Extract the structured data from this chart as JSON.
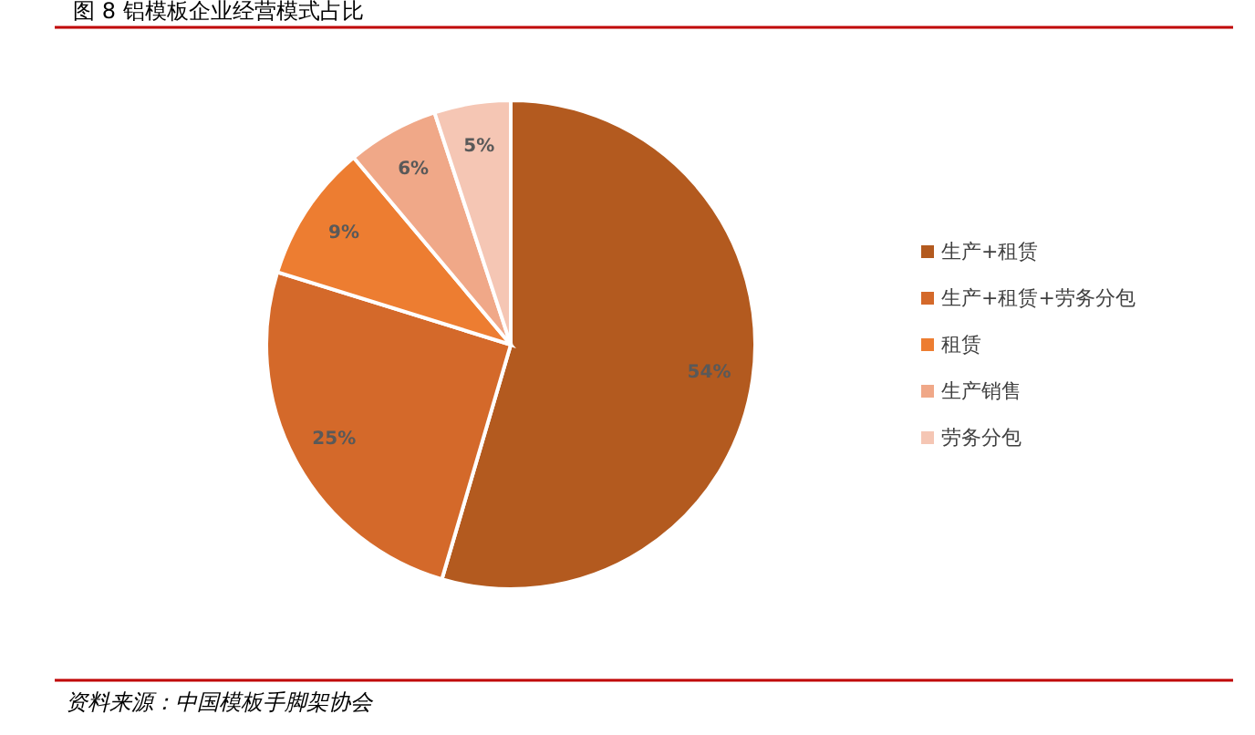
{
  "chart_data": {
    "type": "pie",
    "title": "图 8 铝模板企业经营模式占比",
    "categories": [
      "生产+租赁",
      "生产+租赁+劳务分包",
      "租赁",
      "生产销售",
      "劳务分包"
    ],
    "values": [
      54,
      25,
      9,
      6,
      5
    ],
    "value_labels": [
      "54%",
      "25%",
      "9%",
      "6%",
      "5%"
    ],
    "colors": [
      "#b35a1f",
      "#d4692a",
      "#ed7d31",
      "#f0a888",
      "#f5c6b4"
    ],
    "legend": "right",
    "annotations": [
      "资料来源：中国模板手脚架协会"
    ]
  }
}
